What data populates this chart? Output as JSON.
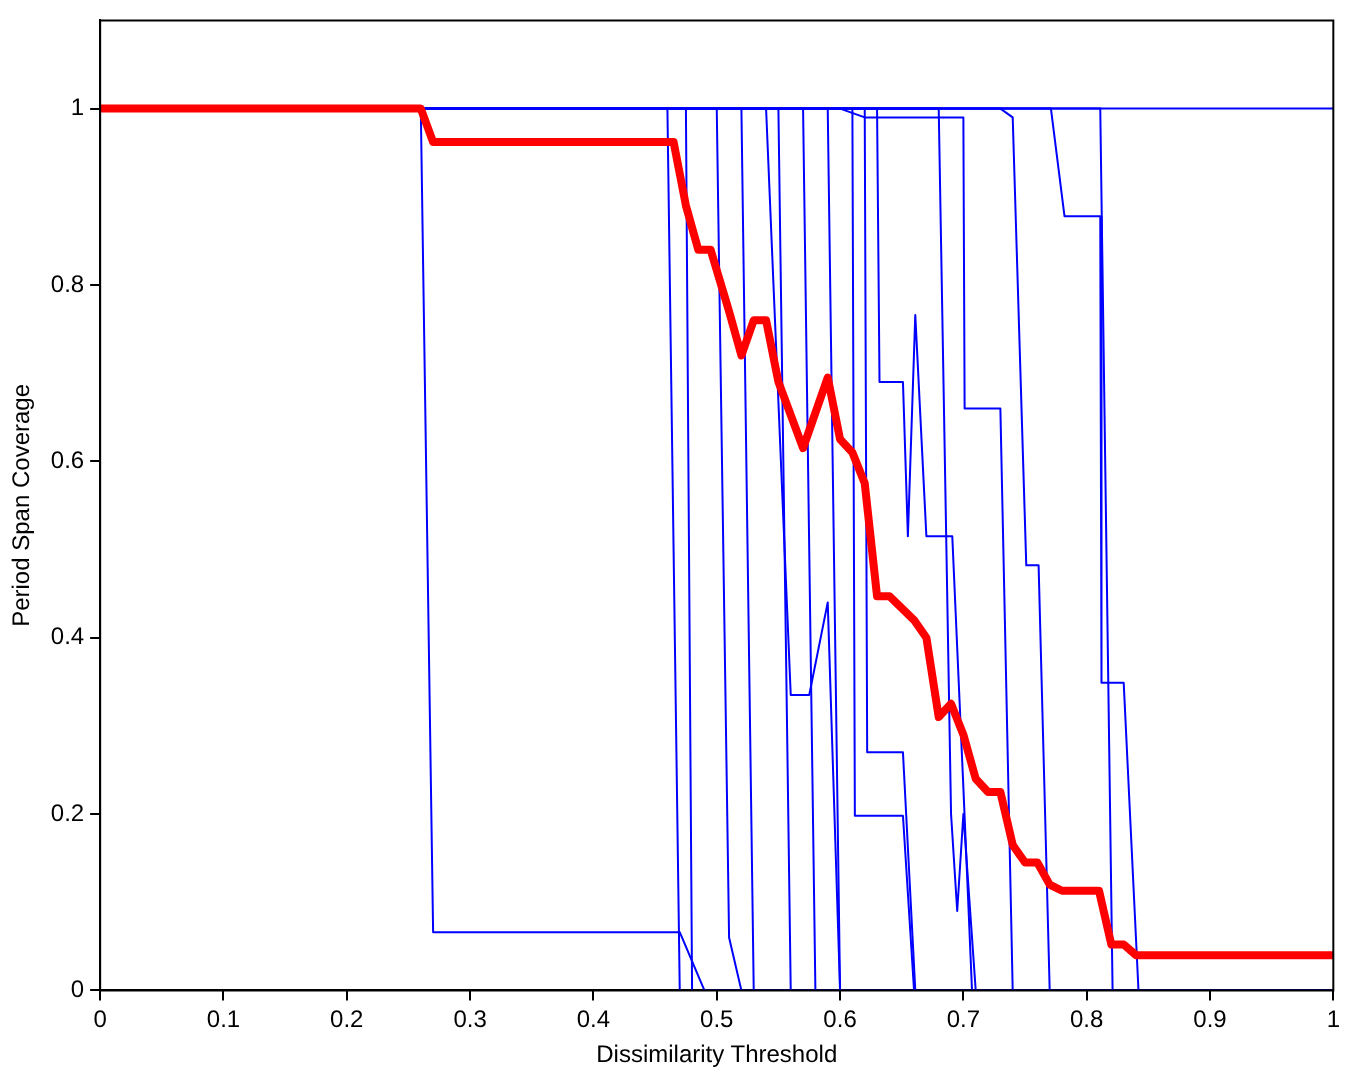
{
  "chart_data": {
    "type": "line",
    "xlabel": "Dissimilarity Threshold",
    "ylabel": "Period Span Coverage",
    "xlim": [
      0,
      1
    ],
    "ylim": [
      0,
      1.1
    ],
    "xticks": [
      0,
      0.1,
      0.2,
      0.3,
      0.4,
      0.5,
      0.6,
      0.7,
      0.8,
      0.9,
      1
    ],
    "yticks": [
      0,
      0.2,
      0.4,
      0.6,
      0.8,
      1
    ],
    "grid": false,
    "legend": false,
    "marker": "none",
    "line_style": "solid",
    "series": [
      {
        "color": "#0000ff",
        "x": [
          0,
          1
        ],
        "values": [
          1,
          1
        ]
      },
      {
        "color": "#0000ff",
        "x": [
          0,
          0.26,
          0.27,
          0.47,
          0.49,
          1
        ],
        "values": [
          1,
          1,
          0.066,
          0.066,
          0,
          0
        ]
      },
      {
        "color": "#0000ff",
        "x": [
          0,
          0.46,
          0.47
        ],
        "values": [
          1,
          1,
          0
        ]
      },
      {
        "color": "#0000ff",
        "x": [
          0,
          0.475,
          0.48
        ],
        "values": [
          1,
          1,
          0
        ]
      },
      {
        "color": "#0000ff",
        "x": [
          0,
          0.5,
          0.51,
          0.52
        ],
        "values": [
          1,
          1,
          0.06,
          0
        ]
      },
      {
        "color": "#0000ff",
        "x": [
          0,
          0.52,
          0.53
        ],
        "values": [
          1,
          1,
          0
        ]
      },
      {
        "color": "#0000ff",
        "x": [
          0,
          0.54,
          0.56,
          0.575,
          0.59,
          0.6
        ],
        "values": [
          1,
          1,
          0.335,
          0.335,
          0.44,
          0
        ]
      },
      {
        "color": "#0000ff",
        "x": [
          0,
          0.55,
          0.56
        ],
        "values": [
          1,
          1,
          0
        ]
      },
      {
        "color": "#0000ff",
        "x": [
          0,
          0.57,
          0.58
        ],
        "values": [
          1,
          1,
          0
        ]
      },
      {
        "color": "#0000ff",
        "x": [
          0,
          0.59,
          0.6
        ],
        "values": [
          1,
          1,
          0
        ]
      },
      {
        "color": "#0000ff",
        "x": [
          0,
          0.61,
          0.612,
          0.651,
          0.66
        ],
        "values": [
          1,
          1,
          0.198,
          0.198,
          0
        ]
      },
      {
        "color": "#0000ff",
        "x": [
          0,
          0.62,
          0.622,
          0.651,
          0.661
        ],
        "values": [
          1,
          1,
          0.27,
          0.27,
          0
        ]
      },
      {
        "color": "#0000ff",
        "x": [
          0,
          0.63,
          0.632,
          0.651,
          0.655,
          0.661,
          0.67,
          0.691,
          0.7,
          0.707
        ],
        "values": [
          1,
          1,
          0.69,
          0.69,
          0.515,
          0.766,
          0.515,
          0.515,
          0.23,
          0
        ]
      },
      {
        "color": "#0000ff",
        "x": [
          0,
          0.6,
          0.62,
          0.7,
          0.701,
          0.73,
          0.74
        ],
        "values": [
          1,
          1,
          0.99,
          0.99,
          0.66,
          0.66,
          0
        ]
      },
      {
        "color": "#0000ff",
        "x": [
          0,
          0.73,
          0.74,
          0.751,
          0.761,
          0.77
        ],
        "values": [
          1,
          1,
          0.99,
          0.482,
          0.482,
          0
        ]
      },
      {
        "color": "#0000ff",
        "x": [
          0,
          0.68,
          0.69,
          0.695,
          0.7,
          0.71
        ],
        "values": [
          1,
          1,
          0.2,
          0.09,
          0.2,
          0
        ]
      },
      {
        "color": "#0000ff",
        "x": [
          0,
          0.771,
          0.782,
          0.811,
          0.812,
          0.83,
          0.842
        ],
        "values": [
          1,
          1,
          0.878,
          0.878,
          0.349,
          0.349,
          0
        ]
      },
      {
        "color": "#0000ff",
        "x": [
          0,
          0.811,
          0.821
        ],
        "values": [
          1,
          1,
          0
        ]
      },
      {
        "color": "#ff0000",
        "x": [
          0,
          0.26,
          0.27,
          0.465,
          0.475,
          0.485,
          0.495,
          0.51,
          0.52,
          0.53,
          0.54,
          0.55,
          0.57,
          0.59,
          0.6,
          0.61,
          0.62,
          0.63,
          0.64,
          0.66,
          0.67,
          0.68,
          0.69,
          0.7,
          0.71,
          0.72,
          0.73,
          0.74,
          0.75,
          0.76,
          0.77,
          0.78,
          0.81,
          0.82,
          0.83,
          0.84,
          1
        ],
        "values": [
          1,
          1,
          0.962,
          0.962,
          0.89,
          0.84,
          0.84,
          0.77,
          0.72,
          0.76,
          0.76,
          0.69,
          0.615,
          0.695,
          0.625,
          0.61,
          0.575,
          0.447,
          0.447,
          0.42,
          0.4,
          0.31,
          0.325,
          0.29,
          0.24,
          0.225,
          0.225,
          0.165,
          0.145,
          0.145,
          0.12,
          0.113,
          0.113,
          0.052,
          0.052,
          0.04,
          0.04
        ]
      }
    ]
  }
}
